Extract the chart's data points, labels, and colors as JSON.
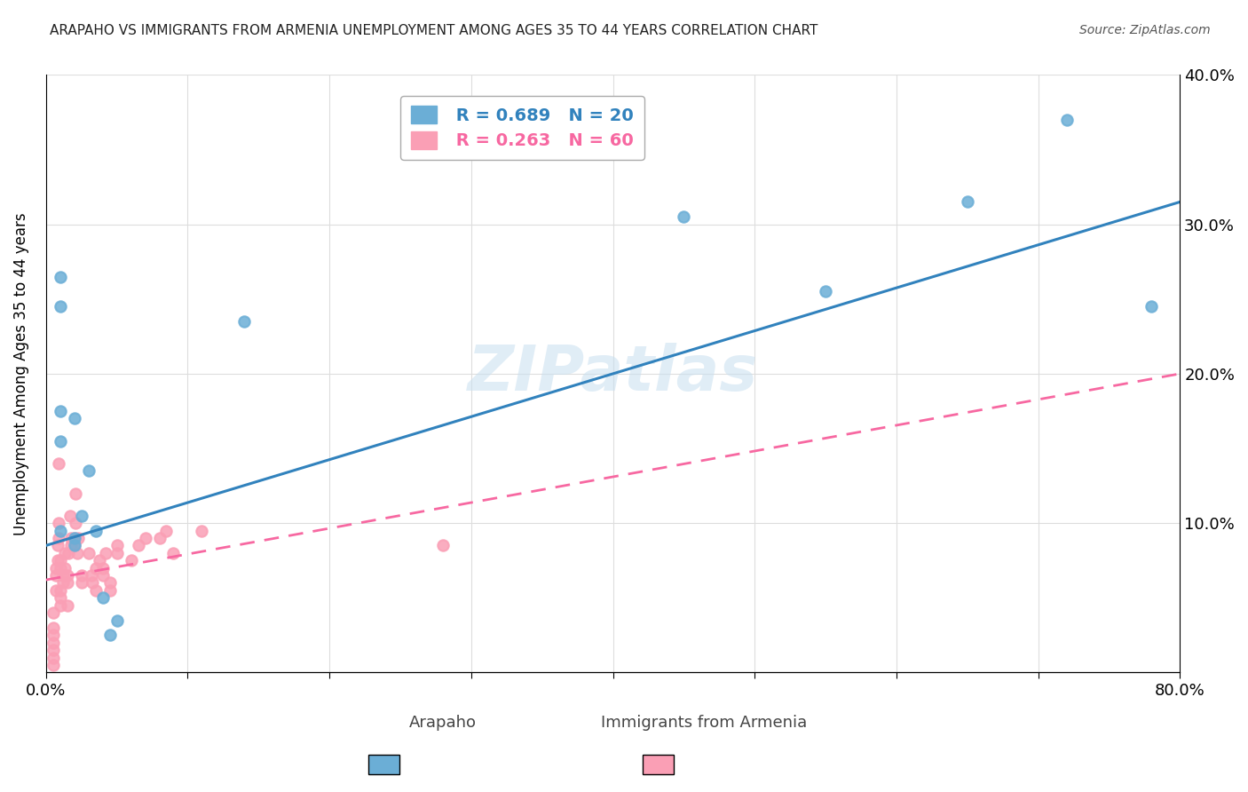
{
  "title": "ARAPAHO VS IMMIGRANTS FROM ARMENIA UNEMPLOYMENT AMONG AGES 35 TO 44 YEARS CORRELATION CHART",
  "source": "Source: ZipAtlas.com",
  "xlabel": "",
  "ylabel": "Unemployment Among Ages 35 to 44 years",
  "xlim": [
    0,
    0.8
  ],
  "ylim": [
    0,
    0.4
  ],
  "xticks": [
    0.0,
    0.1,
    0.2,
    0.3,
    0.4,
    0.5,
    0.6,
    0.7,
    0.8
  ],
  "xticklabels": [
    "0.0%",
    "",
    "",
    "",
    "",
    "",
    "",
    "",
    "80.0%"
  ],
  "yticks": [
    0.0,
    0.1,
    0.2,
    0.3,
    0.4
  ],
  "yticklabels": [
    "",
    "10.0%",
    "20.0%",
    "30.0%",
    "40.0%"
  ],
  "arapaho_color": "#6baed6",
  "armenia_color": "#fa9fb5",
  "arapaho_line_color": "#3182bd",
  "armenia_line_color": "#f768a1",
  "legend_r_arapaho": "R = 0.689",
  "legend_n_arapaho": "N = 20",
  "legend_r_armenia": "R = 0.263",
  "legend_n_armenia": "N = 60",
  "watermark": "ZIPatlas",
  "arapaho_x": [
    0.01,
    0.01,
    0.01,
    0.01,
    0.01,
    0.02,
    0.02,
    0.02,
    0.025,
    0.03,
    0.035,
    0.04,
    0.045,
    0.05,
    0.14,
    0.45,
    0.55,
    0.65,
    0.72,
    0.78
  ],
  "arapaho_y": [
    0.265,
    0.245,
    0.175,
    0.155,
    0.095,
    0.17,
    0.09,
    0.085,
    0.105,
    0.135,
    0.095,
    0.05,
    0.025,
    0.035,
    0.235,
    0.305,
    0.255,
    0.315,
    0.37,
    0.245
  ],
  "armenia_x": [
    0.005,
    0.005,
    0.005,
    0.005,
    0.005,
    0.005,
    0.005,
    0.007,
    0.007,
    0.007,
    0.008,
    0.008,
    0.009,
    0.009,
    0.009,
    0.01,
    0.01,
    0.01,
    0.01,
    0.01,
    0.012,
    0.012,
    0.013,
    0.013,
    0.015,
    0.015,
    0.015,
    0.016,
    0.017,
    0.018,
    0.018,
    0.02,
    0.02,
    0.021,
    0.021,
    0.022,
    0.023,
    0.025,
    0.025,
    0.03,
    0.032,
    0.033,
    0.035,
    0.035,
    0.038,
    0.04,
    0.04,
    0.042,
    0.045,
    0.045,
    0.05,
    0.05,
    0.06,
    0.065,
    0.07,
    0.08,
    0.085,
    0.09,
    0.11,
    0.28
  ],
  "armenia_y": [
    0.005,
    0.01,
    0.015,
    0.02,
    0.025,
    0.03,
    0.04,
    0.055,
    0.065,
    0.07,
    0.075,
    0.085,
    0.09,
    0.1,
    0.14,
    0.045,
    0.05,
    0.055,
    0.07,
    0.075,
    0.06,
    0.065,
    0.07,
    0.08,
    0.045,
    0.06,
    0.065,
    0.08,
    0.105,
    0.085,
    0.09,
    0.085,
    0.09,
    0.1,
    0.12,
    0.08,
    0.09,
    0.06,
    0.065,
    0.08,
    0.065,
    0.06,
    0.055,
    0.07,
    0.075,
    0.065,
    0.07,
    0.08,
    0.055,
    0.06,
    0.08,
    0.085,
    0.075,
    0.085,
    0.09,
    0.09,
    0.095,
    0.08,
    0.095,
    0.085
  ],
  "arapaho_trendline_x": [
    0.0,
    0.8
  ],
  "arapaho_trendline_y": [
    0.085,
    0.315
  ],
  "armenia_trendline_x": [
    0.0,
    0.8
  ],
  "armenia_trendline_y": [
    0.062,
    0.2
  ],
  "bg_color": "#ffffff",
  "grid_color": "#dddddd"
}
